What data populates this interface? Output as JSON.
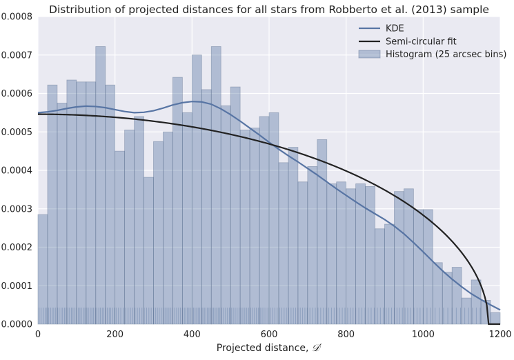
{
  "chart_data": {
    "type": "bar",
    "title": "Distribution of projected distances for all stars from Robberto et al. (2013) sample",
    "xlabel": "Projected distance, ",
    "xlabel_symbol": "𝒟′",
    "ylabel": "",
    "xlim": [
      0,
      1200
    ],
    "ylim": [
      0,
      0.0008
    ],
    "grid": true,
    "legend_position": "top-right",
    "x_ticks": [
      0,
      200,
      400,
      600,
      800,
      1000,
      1200
    ],
    "x_tick_labels": [
      "0",
      "200",
      "400",
      "600",
      "800",
      "1000",
      "1200"
    ],
    "y_ticks": [
      0,
      0.0001,
      0.0002,
      0.0003,
      0.0004,
      0.0005,
      0.0006,
      0.0007,
      0.0008
    ],
    "y_tick_labels": [
      "0.0000",
      "0.0001",
      "0.0002",
      "0.0003",
      "0.0004",
      "0.0005",
      "0.0006",
      "0.0007",
      "0.0008"
    ],
    "histogram": {
      "name": "Histogram (25 arcsec bins)",
      "color": "#4c6b9a",
      "bin_width": 25,
      "bin_edges_start": 0,
      "values": [
        0.000285,
        0.000622,
        0.000575,
        0.000635,
        0.00063,
        0.00063,
        0.000722,
        0.000622,
        0.00045,
        0.000505,
        0.00054,
        0.000382,
        0.000475,
        0.0005,
        0.000642,
        0.00055,
        0.0007,
        0.00061,
        0.000722,
        0.000568,
        0.000617,
        0.000505,
        0.00051,
        0.00054,
        0.00055,
        0.00042,
        0.00046,
        0.00037,
        0.00041,
        0.00048,
        0.000365,
        0.00037,
        0.000352,
        0.000365,
        0.000358,
        0.000248,
        0.00026,
        0.000345,
        0.000352,
        0.000298,
        0.000298,
        0.00016,
        0.000135,
        0.000148,
        6.8e-05,
        0.000115,
        6.2e-05,
        3e-05
      ]
    },
    "series": [
      {
        "name": "KDE",
        "color": "#5875a4",
        "x": [
          0,
          25,
          50,
          75,
          100,
          125,
          150,
          175,
          200,
          225,
          250,
          275,
          300,
          325,
          350,
          375,
          400,
          425,
          450,
          475,
          500,
          525,
          550,
          575,
          600,
          625,
          650,
          675,
          700,
          725,
          750,
          775,
          800,
          825,
          850,
          875,
          900,
          925,
          950,
          975,
          1000,
          1025,
          1050,
          1075,
          1100,
          1125,
          1150,
          1175,
          1200
        ],
        "y": [
          0.00055,
          0.000552,
          0.000556,
          0.000561,
          0.000565,
          0.000567,
          0.000566,
          0.000563,
          0.000558,
          0.000553,
          0.00055,
          0.000551,
          0.000555,
          0.000562,
          0.00057,
          0.000576,
          0.000579,
          0.000578,
          0.000572,
          0.00056,
          0.000545,
          0.000528,
          0.00051,
          0.000492,
          0.000473,
          0.000455,
          0.000438,
          0.000422,
          0.000405,
          0.000388,
          0.00037,
          0.000352,
          0.000335,
          0.000318,
          0.000302,
          0.000287,
          0.000272,
          0.000255,
          0.000235,
          0.000212,
          0.000188,
          0.000163,
          0.000139,
          0.000117,
          9.7e-05,
          7.9e-05,
          6.4e-05,
          5e-05,
          3.7e-05
        ]
      },
      {
        "name": "Semi-circular fit",
        "color": "#222222",
        "function": "semicircle",
        "amplitude": 0.000546,
        "radius": 1170
      }
    ],
    "rug": {
      "color": "#4c6b9a",
      "ymin": 0,
      "ymax": 4.3e-05,
      "x": [
        3,
        8,
        14,
        19,
        23,
        28,
        33,
        37,
        41,
        46,
        51,
        55,
        60,
        64,
        69,
        73,
        78,
        82,
        87,
        91,
        96,
        100,
        105,
        109,
        113,
        118,
        122,
        127,
        131,
        136,
        140,
        144,
        149,
        153,
        158,
        162,
        167,
        171,
        176,
        180,
        185,
        189,
        194,
        198,
        203,
        209,
        215,
        222,
        228,
        234,
        240,
        246,
        252,
        258,
        264,
        270,
        276,
        282,
        288,
        294,
        300,
        305,
        310,
        315,
        320,
        325,
        330,
        335,
        340,
        345,
        350,
        355,
        360,
        365,
        370,
        375,
        380,
        384,
        388,
        392,
        396,
        400,
        404,
        408,
        412,
        416,
        420,
        424,
        428,
        432,
        436,
        440,
        444,
        448,
        452,
        456,
        460,
        464,
        468,
        472,
        477,
        482,
        487,
        492,
        497,
        502,
        507,
        512,
        517,
        522,
        527,
        532,
        537,
        542,
        547,
        552,
        557,
        562,
        567,
        572,
        577,
        582,
        587,
        592,
        597,
        603,
        609,
        615,
        621,
        627,
        633,
        639,
        645,
        651,
        657,
        663,
        669,
        675,
        681,
        687,
        693,
        699,
        706,
        713,
        720,
        727,
        734,
        741,
        748,
        755,
        762,
        769,
        776,
        783,
        790,
        797,
        804,
        811,
        818,
        825,
        833,
        841,
        849,
        857,
        865,
        873,
        881,
        889,
        897,
        904,
        911,
        918,
        925,
        932,
        939,
        946,
        953,
        960,
        968,
        976,
        984,
        992,
        1000,
        1010,
        1020,
        1031,
        1042,
        1053,
        1064,
        1075,
        1086,
        1097,
        1108,
        1118,
        1128,
        1138,
        1148
      ]
    }
  }
}
